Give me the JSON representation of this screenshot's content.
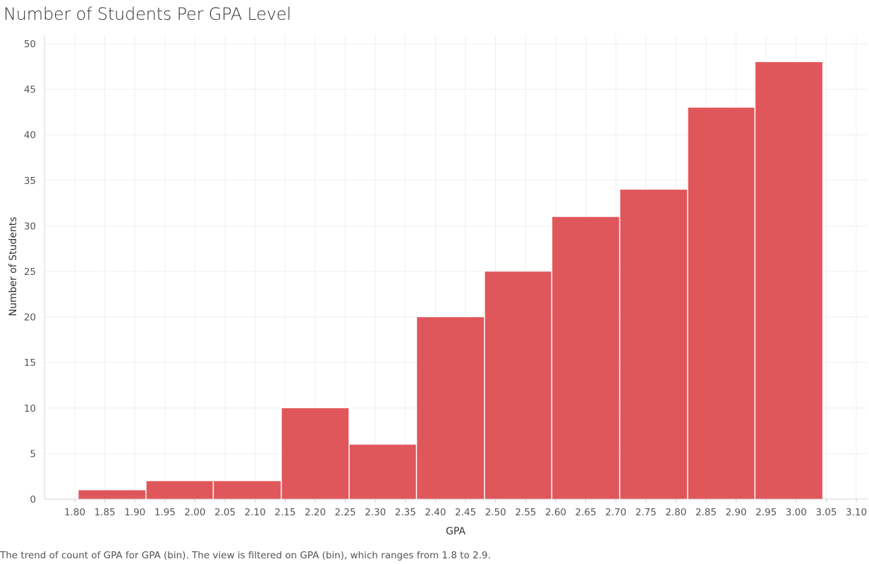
{
  "chart_data": {
    "type": "bar",
    "title": "Number of Students Per GPA Level",
    "xlabel": "GPA",
    "ylabel": "Number of Students",
    "ylim": [
      0,
      50
    ],
    "yticks": [
      0,
      5,
      10,
      15,
      20,
      25,
      30,
      35,
      40,
      45,
      50
    ],
    "xticks": [
      "1.80",
      "1.85",
      "1.90",
      "1.95",
      "2.00",
      "2.05",
      "2.10",
      "2.15",
      "2.20",
      "2.25",
      "2.30",
      "2.35",
      "2.40",
      "2.45",
      "2.50",
      "2.55",
      "2.60",
      "2.65",
      "2.70",
      "2.75",
      "2.80",
      "2.85",
      "2.90",
      "2.95",
      "3.00",
      "3.05",
      "3.10"
    ],
    "xtick_values": [
      1.8,
      1.85,
      1.9,
      1.95,
      2.0,
      2.05,
      2.1,
      2.15,
      2.2,
      2.25,
      2.3,
      2.35,
      2.4,
      2.45,
      2.5,
      2.55,
      2.6,
      2.65,
      2.7,
      2.75,
      2.8,
      2.85,
      2.9,
      2.95,
      3.0,
      3.05,
      3.1
    ],
    "xlim": [
      1.77,
      3.12
    ],
    "bin_edges": [
      1.806,
      1.919,
      2.031,
      2.144,
      2.257,
      2.369,
      2.482,
      2.594,
      2.707,
      2.82,
      2.932,
      3.045
    ],
    "values": [
      1,
      2,
      2,
      10,
      6,
      20,
      25,
      31,
      34,
      43,
      48
    ],
    "bar_color": "#e0575b",
    "grid": true
  },
  "caption": "The trend of count of GPA for GPA (bin). The view is filtered on GPA (bin), which ranges from 1.8 to 2.9."
}
